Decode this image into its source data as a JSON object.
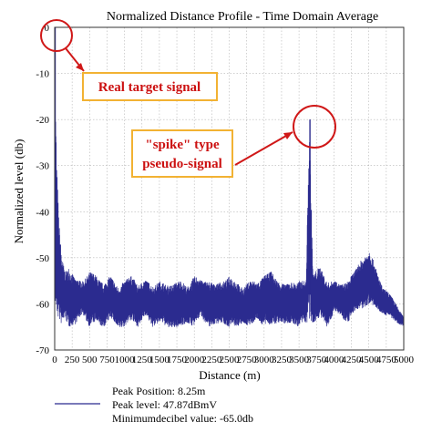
{
  "chart_data": {
    "type": "line",
    "title": "Normalized Distance Profile - Time Domain Average",
    "xlabel": "Distance (m)",
    "ylabel": "Normalized level (db)",
    "xlim": [
      0,
      5000
    ],
    "ylim": [
      -70,
      0
    ],
    "xticks": [
      "0",
      "250",
      "500",
      "750",
      "1000",
      "1250",
      "1500",
      "1750",
      "2000",
      "2250",
      "2500",
      "2750",
      "3000",
      "3250",
      "3500",
      "3750",
      "4000",
      "4250",
      "4500",
      "4750",
      "5000"
    ],
    "yticks": [
      "0",
      "-10",
      "-20",
      "-30",
      "-40",
      "-50",
      "-60",
      "-70"
    ],
    "grid": true,
    "series": [
      {
        "color": "#2b2b8f",
        "style": "noise",
        "envelope": {
          "x": [
            0,
            10,
            30,
            60,
            100,
            150,
            200,
            300,
            400,
            500,
            600,
            700,
            800,
            900,
            1000,
            1100,
            1200,
            1300,
            1400,
            1500,
            1600,
            1700,
            1800,
            1900,
            2000,
            2100,
            2200,
            2300,
            2400,
            2500,
            2600,
            2700,
            2800,
            2900,
            3000,
            3100,
            3200,
            3300,
            3400,
            3500,
            3600,
            3650,
            3700,
            3800,
            3900,
            4000,
            4100,
            4200,
            4300,
            4400,
            4500,
            4600,
            4700,
            4800,
            4900,
            5000
          ],
          "top": [
            -2,
            -15,
            -30,
            -42,
            -50,
            -53,
            -52,
            -55,
            -55,
            -53,
            -54,
            -55,
            -54,
            -56,
            -55,
            -54,
            -56,
            -55,
            -56,
            -55,
            -56,
            -55,
            -55,
            -56,
            -54,
            -55,
            -55,
            -56,
            -55,
            -54,
            -55,
            -56,
            -55,
            -55,
            -54,
            -53,
            -55,
            -56,
            -55,
            -55,
            -55,
            -20,
            -53,
            -52,
            -55,
            -55,
            -56,
            -55,
            -53,
            -50,
            -48,
            -52,
            -56,
            -58,
            -60,
            -63
          ],
          "bottom": [
            -62,
            -62,
            -63,
            -64,
            -65,
            -63,
            -65,
            -65,
            -62,
            -65,
            -64,
            -65,
            -63,
            -65,
            -65,
            -64,
            -65,
            -63,
            -65,
            -64,
            -65,
            -65,
            -65,
            -64,
            -65,
            -63,
            -65,
            -65,
            -64,
            -65,
            -65,
            -64,
            -65,
            -63,
            -65,
            -65,
            -64,
            -65,
            -64,
            -65,
            -64,
            -64,
            -64,
            -63,
            -65,
            -62,
            -63,
            -64,
            -62,
            -61,
            -60,
            -61,
            -62,
            -63,
            -64,
            -65
          ]
        }
      }
    ],
    "annotations": [
      {
        "label": "Real target signal",
        "target": {
          "x": 0,
          "y": 0
        }
      },
      {
        "label_line1": "\"spike\" type",
        "label_line2": "pseudo-signal",
        "target": {
          "x": 3650,
          "y": -20
        }
      }
    ],
    "legend": {
      "lines": [
        "Peak Position: 8.25m",
        "Peak level: 47.87dBmV",
        "Minimumdecibel value: -65.0db"
      ]
    }
  }
}
